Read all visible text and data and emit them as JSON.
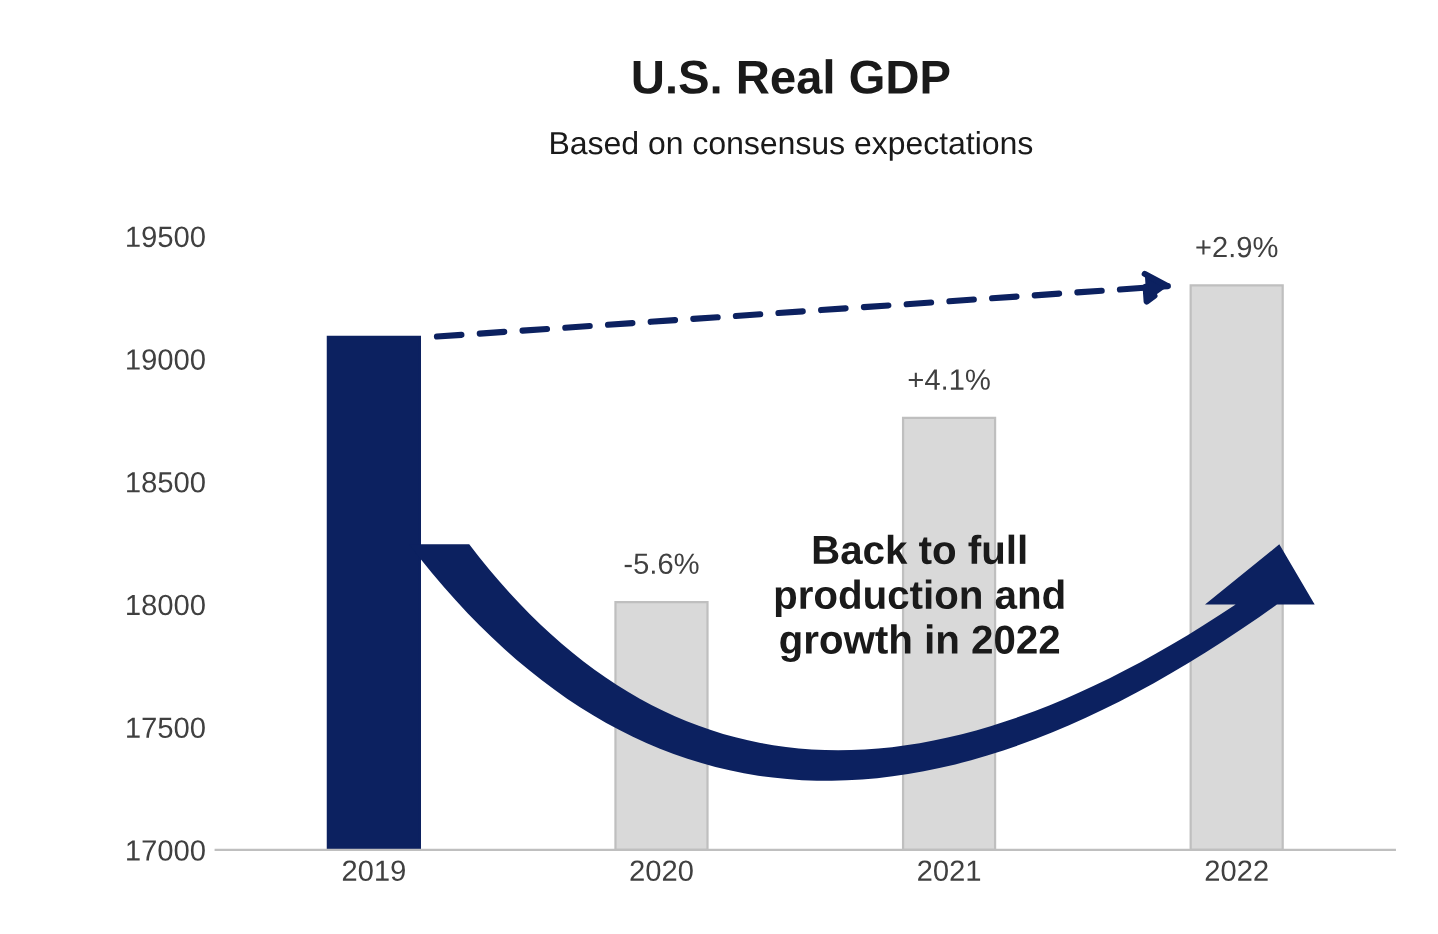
{
  "chart_data": {
    "type": "bar",
    "title": "U.S. Real GDP",
    "subtitle": "Based on consensus expectations",
    "categories": [
      "2019",
      "2020",
      "2021",
      "2022"
    ],
    "series": [
      {
        "color": "#d9d9d9",
        "colors": [
          "#0c2160",
          "#d9d9d9",
          "#d9d9d9",
          "#d9d9d9"
        ],
        "values": [
          19090,
          18010,
          18760,
          19300
        ]
      }
    ],
    "ylim": [
      17000,
      19500
    ],
    "yticks": [
      17000,
      17500,
      18000,
      18500,
      19000,
      19500
    ],
    "grid": false,
    "legend": false,
    "annotations": [
      {
        "text": "-5.6%",
        "x": "2020",
        "y": 18010
      },
      {
        "text": "+4.1%",
        "x": "2021",
        "y": 18760
      },
      {
        "text": "+2.9%",
        "x": "2022",
        "y": 19300
      },
      "Back to full\nproduction and\ngrowth in 2022"
    ]
  }
}
